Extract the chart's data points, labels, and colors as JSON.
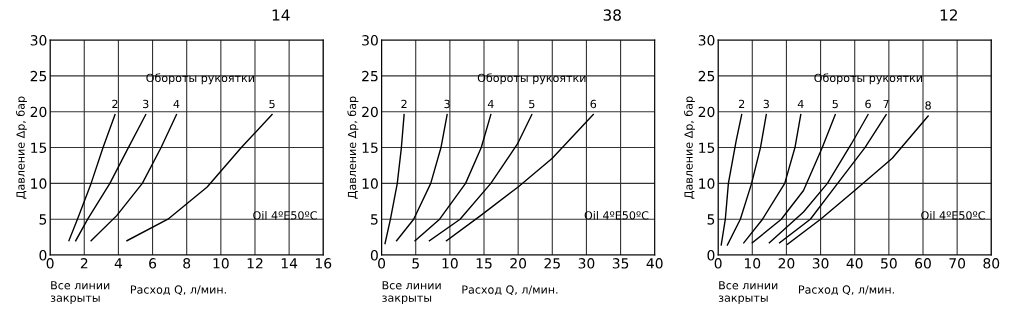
{
  "chart_data": [
    {
      "type": "line",
      "title": "14",
      "xlabel": "Расход Q, л/мин.",
      "ylabel": "Давление Δp, бар",
      "annotations": [
        "Обороты рукоятки",
        "Oil 4ºE50ºC",
        "Все линии\nзакрыты"
      ],
      "xlim": [
        0,
        16
      ],
      "xticks": [
        0,
        2,
        4,
        6,
        8,
        10,
        12,
        14,
        16
      ],
      "ylim": [
        0,
        30
      ],
      "yticks": [
        0,
        5,
        10,
        15,
        20,
        25,
        30
      ],
      "grid": true,
      "legend": false,
      "marker": "none",
      "line_style": "solid",
      "series": [
        {
          "name": "2",
          "color": "#000000",
          "x": [
            1.1,
            1.6,
            2.4,
            3.1,
            3.8
          ],
          "values": [
            2,
            5,
            10,
            15,
            19.6
          ]
        },
        {
          "name": "3",
          "color": "#000000",
          "x": [
            1.5,
            2.2,
            3.5,
            4.5,
            5.6
          ],
          "values": [
            2,
            5,
            10,
            14.6,
            19.6
          ]
        },
        {
          "name": "4",
          "color": "#000000",
          "x": [
            2.4,
            3.9,
            5.4,
            6.5,
            7.4
          ],
          "values": [
            2,
            5.5,
            10,
            15,
            19.6
          ]
        },
        {
          "name": "5",
          "color": "#000000",
          "x": [
            4.5,
            6.9,
            9.2,
            11.2,
            13.0
          ],
          "values": [
            2,
            5,
            9.5,
            15,
            19.6
          ]
        }
      ]
    },
    {
      "type": "line",
      "title": "38",
      "xlabel": "Расход Q, л/мин.",
      "ylabel": "Давление Δp, бар",
      "annotations": [
        "Обороты рукоятки",
        "Oil 4ºE50ºC",
        "Все линии\nзакрыты"
      ],
      "xlim": [
        0,
        40
      ],
      "xticks": [
        0,
        5,
        10,
        15,
        20,
        25,
        30,
        35,
        40
      ],
      "ylim": [
        0,
        30
      ],
      "yticks": [
        0,
        5,
        10,
        15,
        20,
        25,
        30
      ],
      "grid": true,
      "legend": false,
      "marker": "none",
      "line_style": "solid",
      "series": [
        {
          "name": "2",
          "color": "#000000",
          "x": [
            0.5,
            1.3,
            2.3,
            2.9,
            3.3
          ],
          "values": [
            1.6,
            5,
            10,
            15,
            19.6
          ]
        },
        {
          "name": "3",
          "color": "#000000",
          "x": [
            2.2,
            4.7,
            7.2,
            8.7,
            9.6
          ],
          "values": [
            2,
            5,
            10,
            15,
            19.6
          ]
        },
        {
          "name": "4",
          "color": "#000000",
          "x": [
            4.9,
            8.5,
            12.3,
            14.6,
            16
          ],
          "values": [
            2,
            5,
            10,
            15,
            19.6
          ]
        },
        {
          "name": "5",
          "color": "#000000",
          "x": [
            7,
            11.5,
            16,
            19.9,
            22
          ],
          "values": [
            2,
            5,
            10,
            15.5,
            19.6
          ]
        },
        {
          "name": "6",
          "color": "#000000",
          "x": [
            9.5,
            14.5,
            20,
            25,
            31
          ],
          "values": [
            2,
            5.5,
            9.5,
            13.5,
            19.6
          ]
        }
      ]
    },
    {
      "type": "line",
      "title": "12",
      "xlabel": "Расход Q, л/мин.",
      "ylabel": "Давление Δp, бар",
      "annotations": [
        "Обороты рукоятки",
        "Oil 4ºE50ºC",
        "Все линии\nзакрыты"
      ],
      "xlim": [
        0,
        80
      ],
      "xticks": [
        0,
        10,
        20,
        30,
        40,
        50,
        60,
        70,
        80
      ],
      "ylim": [
        0,
        30
      ],
      "yticks": [
        0,
        5,
        10,
        15,
        20,
        25,
        30
      ],
      "grid": true,
      "legend": false,
      "marker": "none",
      "line_style": "solid",
      "series": [
        {
          "name": "2",
          "color": "#000000",
          "x": [
            0.9,
            2.1,
            3.0,
            5.3,
            6.9
          ],
          "values": [
            1.4,
            5,
            10,
            16,
            19.6
          ]
        },
        {
          "name": "3",
          "color": "#000000",
          "x": [
            2.7,
            6.5,
            9.8,
            12.4,
            14.1
          ],
          "values": [
            1.4,
            5,
            10,
            15,
            19.6
          ]
        },
        {
          "name": "4",
          "color": "#000000",
          "x": [
            7.5,
            13,
            19.5,
            22.5,
            24.2
          ],
          "values": [
            1.7,
            5,
            10,
            15,
            19.6
          ]
        },
        {
          "name": "5",
          "color": "#000000",
          "x": [
            10,
            18.5,
            25,
            30.5,
            34.3
          ],
          "values": [
            1.7,
            5,
            9,
            15,
            19.6
          ]
        },
        {
          "name": "6",
          "color": "#000000",
          "x": [
            15,
            25,
            32,
            39,
            43.9
          ],
          "values": [
            1.7,
            6,
            10,
            15.5,
            19.6
          ]
        },
        {
          "name": "7",
          "color": "#000000",
          "x": [
            18,
            27,
            35,
            43,
            49.2
          ],
          "values": [
            1.7,
            5,
            10,
            15,
            19.6
          ]
        },
        {
          "name": "8",
          "color": "#000000",
          "x": [
            20.3,
            30,
            40,
            51,
            61.5
          ],
          "values": [
            1.5,
            5,
            9,
            13.5,
            19.4
          ]
        }
      ]
    }
  ]
}
